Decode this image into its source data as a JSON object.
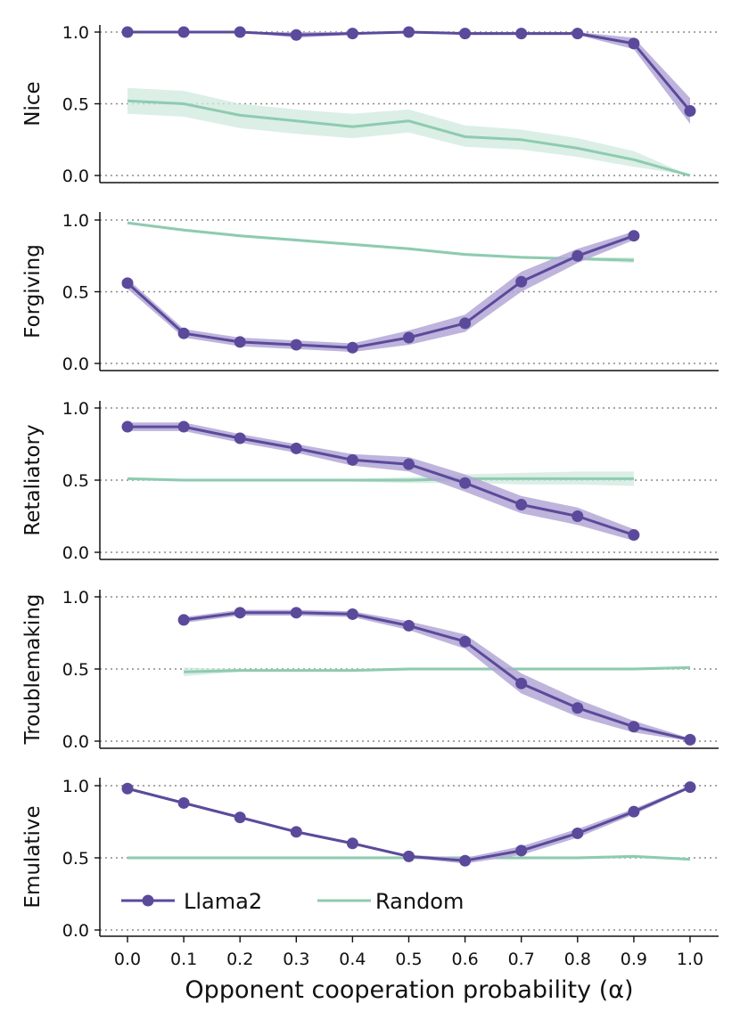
{
  "chart_data": {
    "type": "line",
    "xlabel": "Opponent cooperation probability (α)",
    "x_ticks": [
      "0.0",
      "0.1",
      "0.2",
      "0.3",
      "0.4",
      "0.5",
      "0.6",
      "0.7",
      "0.8",
      "0.9",
      "1.0"
    ],
    "xlim": [
      0.0,
      1.0
    ],
    "y_ticks": [
      "0.0",
      "0.5",
      "1.0"
    ],
    "ylim": [
      0.0,
      1.0
    ],
    "grid": "dotted horizontal at 0.0, 0.5, 1.0",
    "legend": {
      "placement": "bottom-left of last panel",
      "entries": [
        {
          "name": "Llama2",
          "color": "#5b4a9b",
          "marker": "circle"
        },
        {
          "name": "Random",
          "color": "#8ecbb0",
          "marker": "none"
        }
      ]
    },
    "colors": {
      "llama2": "#5b4a9b",
      "llama2_band": "#b3a7d6",
      "random": "#8ecbb0",
      "random_band": "#cfe9de"
    },
    "panels": [
      {
        "ylabel": "Nice",
        "series": [
          {
            "name": "Llama2",
            "x": [
              0.0,
              0.1,
              0.2,
              0.3,
              0.4,
              0.5,
              0.6,
              0.7,
              0.8,
              0.9,
              1.0
            ],
            "values": [
              1.0,
              1.0,
              1.0,
              0.98,
              0.99,
              1.0,
              0.99,
              0.99,
              0.99,
              0.92,
              0.45
            ],
            "lower": [
              1.0,
              1.0,
              1.0,
              0.96,
              0.98,
              1.0,
              0.98,
              0.98,
              0.98,
              0.88,
              0.36
            ],
            "upper": [
              1.0,
              1.0,
              1.0,
              1.0,
              1.0,
              1.0,
              1.0,
              1.0,
              1.0,
              0.96,
              0.54
            ]
          },
          {
            "name": "Random",
            "x": [
              0.0,
              0.1,
              0.2,
              0.3,
              0.4,
              0.5,
              0.6,
              0.7,
              0.8,
              0.9,
              1.0
            ],
            "values": [
              0.52,
              0.5,
              0.42,
              0.38,
              0.34,
              0.38,
              0.27,
              0.25,
              0.19,
              0.11,
              0.0
            ],
            "lower": [
              0.43,
              0.41,
              0.33,
              0.29,
              0.26,
              0.3,
              0.2,
              0.18,
              0.13,
              0.06,
              0.0
            ],
            "upper": [
              0.61,
              0.59,
              0.5,
              0.46,
              0.43,
              0.46,
              0.35,
              0.32,
              0.26,
              0.17,
              0.0
            ]
          }
        ]
      },
      {
        "ylabel": "Forgiving",
        "series": [
          {
            "name": "Llama2",
            "x": [
              0.0,
              0.1,
              0.2,
              0.3,
              0.4,
              0.5,
              0.6,
              0.7,
              0.8,
              0.9
            ],
            "values": [
              0.56,
              0.21,
              0.15,
              0.13,
              0.11,
              0.18,
              0.28,
              0.57,
              0.75,
              0.89
            ],
            "lower": [
              0.52,
              0.18,
              0.12,
              0.1,
              0.08,
              0.13,
              0.22,
              0.5,
              0.7,
              0.86
            ],
            "upper": [
              0.59,
              0.24,
              0.18,
              0.16,
              0.14,
              0.23,
              0.34,
              0.64,
              0.8,
              0.92
            ]
          },
          {
            "name": "Random",
            "x": [
              0.0,
              0.1,
              0.2,
              0.3,
              0.4,
              0.5,
              0.6,
              0.7,
              0.8,
              0.9
            ],
            "values": [
              0.98,
              0.93,
              0.89,
              0.86,
              0.83,
              0.8,
              0.76,
              0.74,
              0.73,
              0.72
            ],
            "lower": [
              0.97,
              0.92,
              0.88,
              0.85,
              0.82,
              0.79,
              0.75,
              0.73,
              0.72,
              0.7
            ],
            "upper": [
              0.99,
              0.94,
              0.9,
              0.87,
              0.84,
              0.81,
              0.77,
              0.75,
              0.74,
              0.74
            ]
          }
        ]
      },
      {
        "ylabel": "Retaliatory",
        "series": [
          {
            "name": "Llama2",
            "x": [
              0.0,
              0.1,
              0.2,
              0.3,
              0.4,
              0.5,
              0.6,
              0.7,
              0.8,
              0.9
            ],
            "values": [
              0.87,
              0.87,
              0.79,
              0.72,
              0.64,
              0.61,
              0.48,
              0.33,
              0.25,
              0.12
            ],
            "lower": [
              0.84,
              0.84,
              0.76,
              0.69,
              0.6,
              0.56,
              0.42,
              0.27,
              0.19,
              0.08
            ],
            "upper": [
              0.9,
              0.9,
              0.82,
              0.75,
              0.68,
              0.66,
              0.54,
              0.39,
              0.31,
              0.16
            ]
          },
          {
            "name": "Random",
            "x": [
              0.0,
              0.1,
              0.2,
              0.3,
              0.4,
              0.5,
              0.6,
              0.7,
              0.8,
              0.9
            ],
            "values": [
              0.51,
              0.5,
              0.5,
              0.5,
              0.5,
              0.5,
              0.51,
              0.51,
              0.51,
              0.51
            ],
            "lower": [
              0.5,
              0.49,
              0.49,
              0.49,
              0.49,
              0.48,
              0.48,
              0.47,
              0.47,
              0.46
            ],
            "upper": [
              0.52,
              0.51,
              0.51,
              0.51,
              0.51,
              0.52,
              0.54,
              0.55,
              0.56,
              0.56
            ]
          }
        ]
      },
      {
        "ylabel": "Troublemaking",
        "series": [
          {
            "name": "Llama2",
            "x": [
              0.1,
              0.2,
              0.3,
              0.4,
              0.5,
              0.6,
              0.7,
              0.8,
              0.9,
              1.0
            ],
            "values": [
              0.84,
              0.89,
              0.89,
              0.88,
              0.8,
              0.69,
              0.4,
              0.23,
              0.1,
              0.01
            ],
            "lower": [
              0.82,
              0.87,
              0.87,
              0.86,
              0.77,
              0.64,
              0.33,
              0.17,
              0.06,
              0.0
            ],
            "upper": [
              0.86,
              0.91,
              0.91,
              0.9,
              0.83,
              0.74,
              0.47,
              0.29,
              0.14,
              0.02
            ]
          },
          {
            "name": "Random",
            "x": [
              0.1,
              0.2,
              0.3,
              0.4,
              0.5,
              0.6,
              0.7,
              0.8,
              0.9,
              1.0
            ],
            "values": [
              0.48,
              0.49,
              0.49,
              0.49,
              0.5,
              0.5,
              0.5,
              0.5,
              0.5,
              0.51
            ],
            "lower": [
              0.45,
              0.48,
              0.48,
              0.48,
              0.49,
              0.49,
              0.49,
              0.49,
              0.49,
              0.5
            ],
            "upper": [
              0.51,
              0.5,
              0.5,
              0.5,
              0.51,
              0.51,
              0.51,
              0.51,
              0.51,
              0.52
            ]
          }
        ]
      },
      {
        "ylabel": "Emulative",
        "series": [
          {
            "name": "Llama2",
            "x": [
              0.0,
              0.1,
              0.2,
              0.3,
              0.4,
              0.5,
              0.6,
              0.7,
              0.8,
              0.9,
              1.0
            ],
            "values": [
              0.98,
              0.88,
              0.78,
              0.68,
              0.6,
              0.51,
              0.48,
              0.55,
              0.67,
              0.82,
              0.99
            ],
            "lower": [
              0.97,
              0.87,
              0.77,
              0.67,
              0.59,
              0.5,
              0.46,
              0.52,
              0.64,
              0.8,
              0.98
            ],
            "upper": [
              0.99,
              0.89,
              0.79,
              0.69,
              0.61,
              0.52,
              0.5,
              0.58,
              0.7,
              0.84,
              1.0
            ]
          },
          {
            "name": "Random",
            "x": [
              0.0,
              0.1,
              0.2,
              0.3,
              0.4,
              0.5,
              0.6,
              0.7,
              0.8,
              0.9,
              1.0
            ],
            "values": [
              0.5,
              0.5,
              0.5,
              0.5,
              0.5,
              0.5,
              0.5,
              0.5,
              0.5,
              0.51,
              0.49
            ],
            "lower": [
              0.49,
              0.49,
              0.49,
              0.49,
              0.49,
              0.49,
              0.49,
              0.49,
              0.49,
              0.5,
              0.48
            ],
            "upper": [
              0.51,
              0.51,
              0.51,
              0.51,
              0.51,
              0.51,
              0.51,
              0.51,
              0.51,
              0.52,
              0.5
            ]
          }
        ]
      }
    ]
  }
}
